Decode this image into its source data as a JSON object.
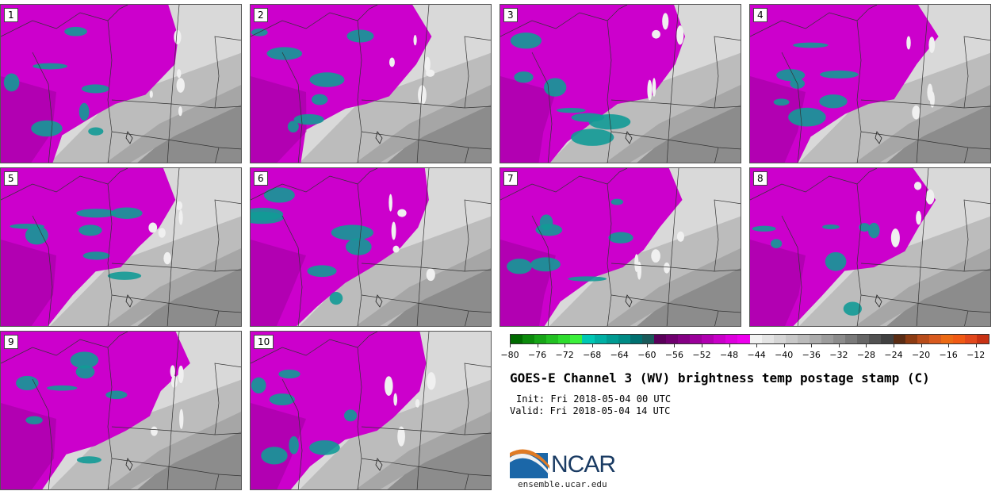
{
  "panels": [
    {
      "label": "1"
    },
    {
      "label": "2"
    },
    {
      "label": "3"
    },
    {
      "label": "4"
    },
    {
      "label": "5"
    },
    {
      "label": "6"
    },
    {
      "label": "7"
    },
    {
      "label": "8"
    },
    {
      "label": "9"
    },
    {
      "label": "10"
    }
  ],
  "colorbar": {
    "colors": [
      "#006a00",
      "#0b8a0b",
      "#17a517",
      "#22c022",
      "#2edc2e",
      "#3cf03c",
      "#00c8b4",
      "#00b0a4",
      "#009b92",
      "#008b85",
      "#007070",
      "#1a5a5a",
      "#5a005a",
      "#6f006f",
      "#840084",
      "#9a009a",
      "#b000b0",
      "#c800c8",
      "#dd00dd",
      "#ee00ee",
      "#f2f2f2",
      "#e4e4e4",
      "#d6d6d6",
      "#c8c8c8",
      "#bababa",
      "#acacac",
      "#9c9c9c",
      "#8c8c8c",
      "#7a7a7a",
      "#666666",
      "#525252",
      "#404040",
      "#5a2c14",
      "#8c3b12",
      "#b84c1a",
      "#d85a1e",
      "#ec6a14",
      "#f05a14",
      "#e2481c",
      "#c83214"
    ],
    "tick_labels": [
      "−80",
      "−76",
      "−72",
      "−68",
      "−64",
      "−60",
      "−56",
      "−52",
      "−48",
      "−44",
      "−40",
      "−36",
      "−32",
      "−28",
      "−24",
      "−20",
      "−16",
      "−12"
    ],
    "range": [
      -80,
      -10
    ]
  },
  "title": "GOES-E Channel 3 (WV) brightness temp postage stamp (C)",
  "init": "Init: Fri 2018-05-04 00 UTC",
  "valid": "Valid: Fri 2018-05-04 14 UTC",
  "logo": {
    "text": "NCAR",
    "url": "ensemble.ucar.edu"
  },
  "map_colors": {
    "moist": "#cc00cc",
    "very_moist": "#129a96",
    "dry_light": "#d9d9d9",
    "dry_mid": "#bcbcbc",
    "dry_dark": "#8c8c8c"
  }
}
